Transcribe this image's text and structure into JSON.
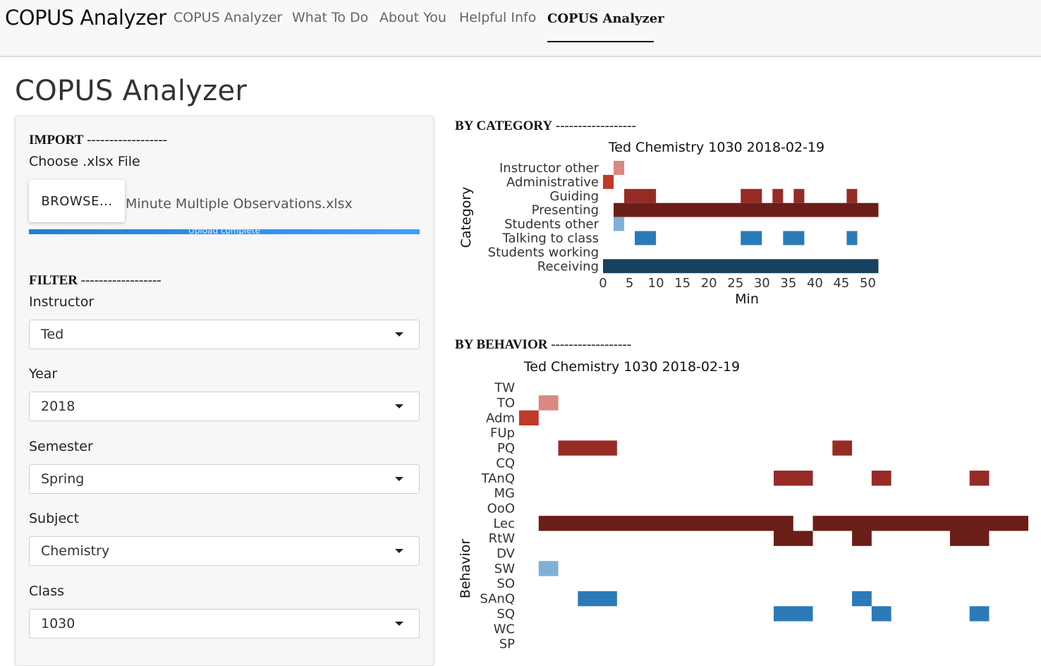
{
  "navbar": {
    "brand": "COPUS Analyzer",
    "items": [
      "COPUS Analyzer",
      "What To Do",
      "About You",
      "Helpful Info",
      "COPUS Analyzer"
    ]
  },
  "page_title": "COPUS Analyzer",
  "import": {
    "heading": "IMPORT",
    "dashes": "------------------",
    "choose_label": "Choose .xlsx File",
    "browse_label": "BROWSE...",
    "file_name": "Minute Multiple Observations.xlsx",
    "upload_status": "Upload complete",
    "upload_progress": 1.0
  },
  "filter": {
    "heading": "FILTER",
    "dashes": "------------------",
    "fields": [
      {
        "label": "Instructor",
        "value": "Ted"
      },
      {
        "label": "Year",
        "value": "2018"
      },
      {
        "label": "Semester",
        "value": "Spring"
      },
      {
        "label": "Subject",
        "value": "Chemistry"
      },
      {
        "label": "Class",
        "value": "1030"
      }
    ]
  },
  "category_section": {
    "heading": "BY CATEGORY",
    "dashes": "------------------"
  },
  "behavior_section": {
    "heading": "BY BEHAVIOR",
    "dashes": "------------------"
  },
  "colors": {
    "instructor_other": "#d98882",
    "administrative": "#c0392b",
    "guiding": "#962b25",
    "presenting": "#6b1e18",
    "students_other": "#7fb1d8",
    "talking": "#2b7ab8",
    "receiving": "#18415f"
  },
  "chart_data": [
    {
      "type": "heatmap",
      "title": "Ted Chemistry 1030 2018-02-19",
      "xlabel": "Min",
      "ylabel": "Category",
      "x_ticks": [
        0,
        5,
        10,
        15,
        20,
        25,
        30,
        35,
        40,
        45,
        50
      ],
      "xlim": [
        0,
        51
      ],
      "categories": [
        "Instructor other",
        "Administrative",
        "Guiding",
        "Presenting",
        "Students other",
        "Talking to class",
        "Students working",
        "Receiving"
      ],
      "series": [
        {
          "name": "Instructor other",
          "color": "#d98882",
          "segments": [
            [
              2,
              4
            ]
          ]
        },
        {
          "name": "Administrative",
          "color": "#c0392b",
          "segments": [
            [
              0,
              2
            ]
          ]
        },
        {
          "name": "Guiding",
          "color": "#962b25",
          "segments": [
            [
              4,
              10
            ],
            [
              26,
              30
            ],
            [
              32,
              34
            ],
            [
              36,
              38
            ],
            [
              46,
              48
            ]
          ]
        },
        {
          "name": "Presenting",
          "color": "#6b1e18",
          "segments": [
            [
              2,
              52
            ]
          ]
        },
        {
          "name": "Students other",
          "color": "#7fb1d8",
          "segments": [
            [
              2,
              4
            ]
          ]
        },
        {
          "name": "Talking to class",
          "color": "#2b7ab8",
          "segments": [
            [
              6,
              10
            ],
            [
              26,
              30
            ],
            [
              34,
              38
            ],
            [
              46,
              48
            ]
          ]
        },
        {
          "name": "Students working",
          "color": "#000000",
          "segments": []
        },
        {
          "name": "Receiving",
          "color": "#18415f",
          "segments": [
            [
              0,
              52
            ]
          ]
        }
      ]
    },
    {
      "type": "heatmap",
      "title": "Ted Chemistry 1030 2018-02-19",
      "ylabel": "Behavior",
      "xlim": [
        0,
        26
      ],
      "categories": [
        "TW",
        "TO",
        "Adm",
        "FUp",
        "PQ",
        "CQ",
        "TAnQ",
        "MG",
        "OoO",
        "Lec",
        "RtW",
        "DV",
        "SW",
        "SO",
        "SAnQ",
        "SQ",
        "WC",
        "SP"
      ],
      "series": [
        {
          "name": "TO",
          "color": "#d98882",
          "segments": [
            [
              1,
              2
            ]
          ]
        },
        {
          "name": "Adm",
          "color": "#c0392b",
          "segments": [
            [
              0,
              1
            ]
          ]
        },
        {
          "name": "PQ",
          "color": "#962b25",
          "segments": [
            [
              2,
              5
            ],
            [
              16,
              17
            ]
          ]
        },
        {
          "name": "TAnQ",
          "color": "#962b25",
          "segments": [
            [
              13,
              15
            ],
            [
              18,
              19
            ],
            [
              23,
              24
            ]
          ]
        },
        {
          "name": "Lec",
          "color": "#6b1e18",
          "segments": [
            [
              1,
              14
            ],
            [
              15,
              26
            ]
          ]
        },
        {
          "name": "RtW",
          "color": "#6b1e18",
          "segments": [
            [
              13,
              15
            ],
            [
              17,
              18
            ],
            [
              22,
              24
            ]
          ]
        },
        {
          "name": "SW",
          "color": "#7fb1d8",
          "segments": [
            [
              1,
              2
            ]
          ]
        },
        {
          "name": "SAnQ",
          "color": "#2b7ab8",
          "segments": [
            [
              3,
              5
            ],
            [
              17,
              18
            ]
          ]
        },
        {
          "name": "SQ",
          "color": "#2b7ab8",
          "segments": [
            [
              13,
              15
            ],
            [
              18,
              19
            ],
            [
              23,
              24
            ]
          ]
        }
      ]
    }
  ]
}
